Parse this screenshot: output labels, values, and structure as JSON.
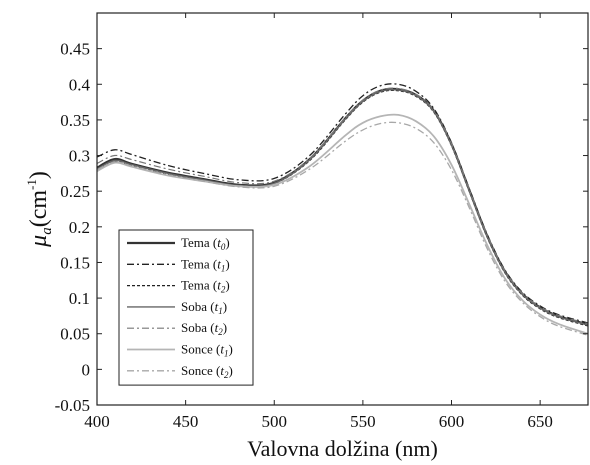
{
  "chart_data": {
    "type": "line",
    "xlabel": "Valovna dolžina (nm)",
    "ylabel_symbol": "μ",
    "ylabel_subscript": "a",
    "ylabel_unit": "(cm",
    "ylabel_unit_exp": "-1",
    "ylabel_close": ")",
    "xlim": [
      400,
      677
    ],
    "ylim": [
      -0.05,
      0.5
    ],
    "xticks": [
      "400",
      "450",
      "500",
      "550",
      "600",
      "650"
    ],
    "yticks": [
      "-0.05",
      "0",
      "0.05",
      "0.1",
      "0.15",
      "0.2",
      "0.25",
      "0.3",
      "0.35",
      "0.4",
      "0.45"
    ],
    "grid": false,
    "legend_position": "lower-left",
    "x": [
      400,
      410,
      420,
      440,
      460,
      480,
      500,
      520,
      540,
      550,
      560,
      570,
      580,
      590,
      600,
      610,
      620,
      630,
      640,
      650,
      660,
      677
    ],
    "series": [
      {
        "name": "Tema",
        "sub": "0",
        "color": "#333333",
        "dash": "",
        "width": 2.2,
        "values": [
          0.283,
          0.295,
          0.288,
          0.276,
          0.267,
          0.259,
          0.262,
          0.295,
          0.352,
          0.377,
          0.391,
          0.393,
          0.385,
          0.363,
          0.316,
          0.252,
          0.188,
          0.138,
          0.106,
          0.087,
          0.075,
          0.063
        ]
      },
      {
        "name": "Tema",
        "sub": "1",
        "color": "#222222",
        "dash": "7 3 2 3",
        "width": 1.3,
        "values": [
          0.298,
          0.308,
          0.301,
          0.286,
          0.275,
          0.266,
          0.268,
          0.3,
          0.358,
          0.384,
          0.398,
          0.4,
          0.39,
          0.366,
          0.318,
          0.254,
          0.19,
          0.14,
          0.108,
          0.089,
          0.077,
          0.065
        ]
      },
      {
        "name": "Tema",
        "sub": "2",
        "color": "#222222",
        "dash": "3 2",
        "width": 1.3,
        "values": [
          0.279,
          0.292,
          0.286,
          0.274,
          0.265,
          0.258,
          0.261,
          0.293,
          0.35,
          0.375,
          0.389,
          0.391,
          0.383,
          0.361,
          0.314,
          0.25,
          0.186,
          0.136,
          0.104,
          0.085,
          0.073,
          0.061
        ]
      },
      {
        "name": "Soba",
        "sub": "1",
        "color": "#666666",
        "dash": "",
        "width": 1.4,
        "values": [
          0.281,
          0.293,
          0.287,
          0.275,
          0.266,
          0.258,
          0.261,
          0.294,
          0.351,
          0.376,
          0.39,
          0.392,
          0.384,
          0.362,
          0.315,
          0.251,
          0.187,
          0.137,
          0.105,
          0.086,
          0.074,
          0.062
        ]
      },
      {
        "name": "Soba",
        "sub": "2",
        "color": "#777777",
        "dash": "7 3 2 3",
        "width": 1.2,
        "values": [
          0.289,
          0.3,
          0.294,
          0.281,
          0.271,
          0.262,
          0.264,
          0.296,
          0.353,
          0.378,
          0.392,
          0.394,
          0.386,
          0.364,
          0.317,
          0.253,
          0.189,
          0.139,
          0.107,
          0.088,
          0.076,
          0.064
        ]
      },
      {
        "name": "Sonce",
        "sub": "1",
        "color": "#b5b5b5",
        "dash": "",
        "width": 1.8,
        "values": [
          0.278,
          0.29,
          0.284,
          0.272,
          0.264,
          0.257,
          0.259,
          0.285,
          0.328,
          0.346,
          0.355,
          0.357,
          0.348,
          0.327,
          0.287,
          0.232,
          0.175,
          0.128,
          0.097,
          0.077,
          0.064,
          0.05
        ]
      },
      {
        "name": "Sonce",
        "sub": "2",
        "color": "#a8a8a8",
        "dash": "7 3 2 3",
        "width": 1.3,
        "values": [
          0.28,
          0.291,
          0.285,
          0.273,
          0.264,
          0.256,
          0.257,
          0.281,
          0.32,
          0.336,
          0.345,
          0.346,
          0.338,
          0.318,
          0.28,
          0.227,
          0.17,
          0.124,
          0.094,
          0.074,
          0.061,
          0.048
        ]
      }
    ]
  }
}
